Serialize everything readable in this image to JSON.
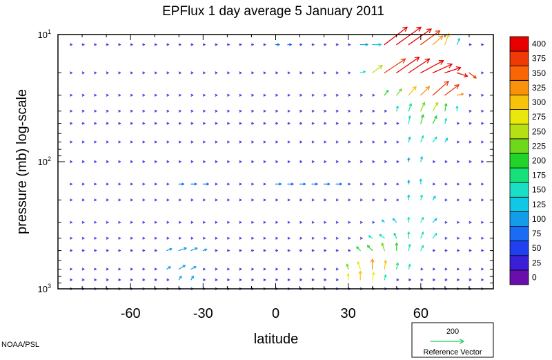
{
  "chart_data": {
    "type": "vector-field",
    "title": "EPFlux  1 day average  5 January   2011",
    "xlabel": "latitude",
    "ylabel": "pressure (mb)  log-scale",
    "xlim": [
      -90,
      90
    ],
    "ylim": [
      1000,
      10
    ],
    "yscale": "log",
    "xticks": [
      -60,
      -30,
      0,
      30,
      60
    ],
    "yticks": [
      {
        "value": 10,
        "base": "10",
        "exp": "1"
      },
      {
        "value": 100,
        "base": "10",
        "exp": "2"
      },
      {
        "value": 1000,
        "base": "10",
        "exp": "3"
      }
    ],
    "colorbar": {
      "levels": [
        0,
        25,
        50,
        75,
        100,
        125,
        150,
        175,
        200,
        225,
        250,
        275,
        300,
        325,
        350,
        375,
        400
      ],
      "colors": [
        "#6a0dad",
        "#3a1fd6",
        "#1e40f0",
        "#1a6cf5",
        "#159ce8",
        "#10c7e6",
        "#19e0c4",
        "#17e07a",
        "#22d42a",
        "#6fd81b",
        "#b6e015",
        "#e8e80c",
        "#f6c30a",
        "#f89208",
        "#f86606",
        "#f03a05",
        "#e80000"
      ]
    },
    "reference_vector": {
      "magnitude_label": "200",
      "label": "Reference Vector",
      "color": "#22cc66"
    },
    "pressure_levels": [
      12,
      20,
      30,
      40,
      50,
      70,
      100,
      150,
      200,
      300,
      400,
      500,
      700,
      850,
      1000
    ],
    "lon_step": 5,
    "vectors": [
      {
        "lat": 35,
        "p": 12,
        "u": 1.2,
        "v": 0.0,
        "m": 120
      },
      {
        "lat": 40,
        "p": 12,
        "u": 1.4,
        "v": 0.0,
        "m": 140
      },
      {
        "lat": 45,
        "p": 12,
        "u": 2.6,
        "v": 2.0,
        "m": 410
      },
      {
        "lat": 50,
        "p": 12,
        "u": 2.8,
        "v": 2.0,
        "m": 420
      },
      {
        "lat": 55,
        "p": 12,
        "u": 2.6,
        "v": 1.8,
        "m": 400
      },
      {
        "lat": 60,
        "p": 12,
        "u": 2.2,
        "v": 1.6,
        "m": 380
      },
      {
        "lat": 65,
        "p": 12,
        "u": 1.6,
        "v": 1.4,
        "m": 330
      },
      {
        "lat": 70,
        "p": 12,
        "u": 0.6,
        "v": 1.8,
        "m": 300
      },
      {
        "lat": 75,
        "p": 12,
        "u": 0.4,
        "v": 1.0,
        "m": 140
      },
      {
        "lat": 35,
        "p": 20,
        "u": 0.8,
        "v": 0.2,
        "m": 160
      },
      {
        "lat": 40,
        "p": 20,
        "u": 1.6,
        "v": 1.2,
        "m": 260
      },
      {
        "lat": 45,
        "p": 20,
        "u": 2.4,
        "v": 1.6,
        "m": 380
      },
      {
        "lat": 50,
        "p": 20,
        "u": 2.6,
        "v": 1.8,
        "m": 410
      },
      {
        "lat": 55,
        "p": 20,
        "u": 2.4,
        "v": 1.6,
        "m": 410
      },
      {
        "lat": 60,
        "p": 20,
        "u": 2.6,
        "v": 1.4,
        "m": 420
      },
      {
        "lat": 65,
        "p": 20,
        "u": 2.2,
        "v": 1.0,
        "m": 420
      },
      {
        "lat": 70,
        "p": 20,
        "u": 1.8,
        "v": 0.6,
        "m": 410
      },
      {
        "lat": 75,
        "p": 20,
        "u": 1.2,
        "v": -0.4,
        "m": 400
      },
      {
        "lat": 80,
        "p": 20,
        "u": 0.8,
        "v": -0.6,
        "m": 380
      },
      {
        "lat": 45,
        "p": 30,
        "u": 0.6,
        "v": 0.8,
        "m": 210
      },
      {
        "lat": 50,
        "p": 30,
        "u": 0.8,
        "v": 1.0,
        "m": 240
      },
      {
        "lat": 55,
        "p": 30,
        "u": 1.2,
        "v": 1.4,
        "m": 310
      },
      {
        "lat": 60,
        "p": 30,
        "u": 1.4,
        "v": 1.4,
        "m": 340
      },
      {
        "lat": 65,
        "p": 30,
        "u": 1.8,
        "v": 1.6,
        "m": 390
      },
      {
        "lat": 70,
        "p": 30,
        "u": 1.6,
        "v": 1.2,
        "m": 380
      },
      {
        "lat": 75,
        "p": 30,
        "u": 1.0,
        "v": 0.2,
        "m": 340
      },
      {
        "lat": 50,
        "p": 40,
        "u": 0.2,
        "v": 0.8,
        "m": 170
      },
      {
        "lat": 55,
        "p": 40,
        "u": 0.4,
        "v": 1.2,
        "m": 190
      },
      {
        "lat": 60,
        "p": 40,
        "u": 0.6,
        "v": 1.4,
        "m": 230
      },
      {
        "lat": 65,
        "p": 40,
        "u": 0.8,
        "v": 1.4,
        "m": 260
      },
      {
        "lat": 70,
        "p": 40,
        "u": 0.2,
        "v": 1.2,
        "m": 200
      },
      {
        "lat": 75,
        "p": 40,
        "u": 0.0,
        "v": 0.8,
        "m": 150
      },
      {
        "lat": 55,
        "p": 50,
        "u": 0.2,
        "v": 1.2,
        "m": 170
      },
      {
        "lat": 60,
        "p": 50,
        "u": 0.4,
        "v": 1.4,
        "m": 200
      },
      {
        "lat": 65,
        "p": 50,
        "u": 0.6,
        "v": 1.2,
        "m": 210
      },
      {
        "lat": 70,
        "p": 50,
        "u": 0.2,
        "v": 0.8,
        "m": 170
      },
      {
        "lat": 55,
        "p": 70,
        "u": 0.2,
        "v": 0.8,
        "m": 140
      },
      {
        "lat": 60,
        "p": 70,
        "u": 0.4,
        "v": 1.0,
        "m": 150
      },
      {
        "lat": 65,
        "p": 70,
        "u": 0.6,
        "v": 0.8,
        "m": 150
      },
      {
        "lat": 70,
        "p": 70,
        "u": 0.4,
        "v": 0.6,
        "m": 130
      },
      {
        "lat": 55,
        "p": 100,
        "u": 0.0,
        "v": 0.6,
        "m": 110
      },
      {
        "lat": 60,
        "p": 100,
        "u": 0.2,
        "v": 0.8,
        "m": 130
      },
      {
        "lat": 55,
        "p": 150,
        "u": 0.0,
        "v": 0.6,
        "m": 120
      },
      {
        "lat": 60,
        "p": 150,
        "u": 0.0,
        "v": 0.8,
        "m": 140
      },
      {
        "lat": 55,
        "p": 200,
        "u": 0.0,
        "v": 0.8,
        "m": 140
      },
      {
        "lat": 60,
        "p": 200,
        "u": 0.2,
        "v": 0.8,
        "m": 150
      },
      {
        "lat": 65,
        "p": 200,
        "u": 0.4,
        "v": 0.6,
        "m": 140
      },
      {
        "lat": 45,
        "p": 300,
        "u": -0.4,
        "v": 0.4,
        "m": 130
      },
      {
        "lat": 50,
        "p": 300,
        "u": -0.6,
        "v": 0.6,
        "m": 140
      },
      {
        "lat": 55,
        "p": 300,
        "u": 0.0,
        "v": 0.8,
        "m": 150
      },
      {
        "lat": 60,
        "p": 300,
        "u": 0.4,
        "v": 0.8,
        "m": 150
      },
      {
        "lat": 65,
        "p": 300,
        "u": 0.6,
        "v": 0.6,
        "m": 140
      },
      {
        "lat": 40,
        "p": 400,
        "u": -0.6,
        "v": 0.4,
        "m": 150
      },
      {
        "lat": 45,
        "p": 400,
        "u": -0.8,
        "v": 0.6,
        "m": 170
      },
      {
        "lat": 50,
        "p": 400,
        "u": -0.4,
        "v": 0.8,
        "m": 180
      },
      {
        "lat": 55,
        "p": 400,
        "u": 0.0,
        "v": 1.0,
        "m": 180
      },
      {
        "lat": 60,
        "p": 400,
        "u": 0.4,
        "v": 1.0,
        "m": 170
      },
      {
        "lat": 65,
        "p": 400,
        "u": 0.6,
        "v": 0.8,
        "m": 160
      },
      {
        "lat": 35,
        "p": 500,
        "u": -0.6,
        "v": 0.6,
        "m": 200
      },
      {
        "lat": 40,
        "p": 500,
        "u": -0.8,
        "v": 0.8,
        "m": 220
      },
      {
        "lat": 45,
        "p": 500,
        "u": -0.4,
        "v": 1.2,
        "m": 230
      },
      {
        "lat": 50,
        "p": 500,
        "u": 0.0,
        "v": 1.2,
        "m": 210
      },
      {
        "lat": 55,
        "p": 500,
        "u": 0.2,
        "v": 1.0,
        "m": 170
      },
      {
        "lat": 60,
        "p": 500,
        "u": 0.4,
        "v": 0.8,
        "m": 150
      },
      {
        "lat": 30,
        "p": 700,
        "u": -0.2,
        "v": 0.8,
        "m": 240
      },
      {
        "lat": 35,
        "p": 700,
        "u": -0.4,
        "v": 1.2,
        "m": 290
      },
      {
        "lat": 40,
        "p": 700,
        "u": 0.0,
        "v": 1.6,
        "m": 330
      },
      {
        "lat": 45,
        "p": 700,
        "u": 0.2,
        "v": 1.4,
        "m": 300
      },
      {
        "lat": 50,
        "p": 700,
        "u": 0.2,
        "v": 1.0,
        "m": 180
      },
      {
        "lat": 55,
        "p": 700,
        "u": 0.2,
        "v": 0.8,
        "m": 150
      },
      {
        "lat": 30,
        "p": 850,
        "u": 0.0,
        "v": 1.0,
        "m": 280
      },
      {
        "lat": 35,
        "p": 850,
        "u": 0.0,
        "v": 1.4,
        "m": 320
      },
      {
        "lat": 40,
        "p": 850,
        "u": 0.2,
        "v": 1.2,
        "m": 290
      },
      {
        "lat": 45,
        "p": 850,
        "u": 0.2,
        "v": 0.8,
        "m": 170
      },
      {
        "lat": -45,
        "p": 500,
        "u": 0.8,
        "v": 0.3,
        "m": 110
      },
      {
        "lat": -40,
        "p": 500,
        "u": 1.2,
        "v": 0.4,
        "m": 120
      },
      {
        "lat": -35,
        "p": 500,
        "u": 1.0,
        "v": 0.4,
        "m": 110
      },
      {
        "lat": -30,
        "p": 500,
        "u": 0.6,
        "v": 0.2,
        "m": 100
      },
      {
        "lat": -45,
        "p": 700,
        "u": 0.6,
        "v": 0.4,
        "m": 110
      },
      {
        "lat": -40,
        "p": 700,
        "u": 1.0,
        "v": 0.6,
        "m": 120
      },
      {
        "lat": -35,
        "p": 700,
        "u": 0.8,
        "v": 0.4,
        "m": 110
      },
      {
        "lat": -40,
        "p": 850,
        "u": 0.4,
        "v": 0.6,
        "m": 100
      },
      {
        "lat": -35,
        "p": 850,
        "u": 0.4,
        "v": 0.6,
        "m": 100
      },
      {
        "lat": 0,
        "p": 12,
        "u": 0.6,
        "v": 0.0,
        "m": 75
      },
      {
        "lat": 5,
        "p": 12,
        "u": 0.6,
        "v": 0.0,
        "m": 75
      },
      {
        "lat": -40,
        "p": 150,
        "u": 0.8,
        "v": 0.0,
        "m": 75
      },
      {
        "lat": -35,
        "p": 150,
        "u": 0.9,
        "v": 0.0,
        "m": 75
      },
      {
        "lat": -30,
        "p": 150,
        "u": 0.9,
        "v": 0.0,
        "m": 75
      },
      {
        "lat": 0,
        "p": 150,
        "u": 0.9,
        "v": 0.0,
        "m": 80
      },
      {
        "lat": 5,
        "p": 150,
        "u": 0.9,
        "v": 0.0,
        "m": 80
      },
      {
        "lat": 10,
        "p": 150,
        "u": 0.9,
        "v": 0.0,
        "m": 80
      },
      {
        "lat": 15,
        "p": 150,
        "u": 0.9,
        "v": 0.0,
        "m": 80
      },
      {
        "lat": 20,
        "p": 150,
        "u": 0.9,
        "v": 0.0,
        "m": 80
      },
      {
        "lat": 25,
        "p": 150,
        "u": 0.9,
        "v": 0.0,
        "m": 85
      }
    ]
  },
  "footer": {
    "credit": "NOAA/PSL"
  }
}
